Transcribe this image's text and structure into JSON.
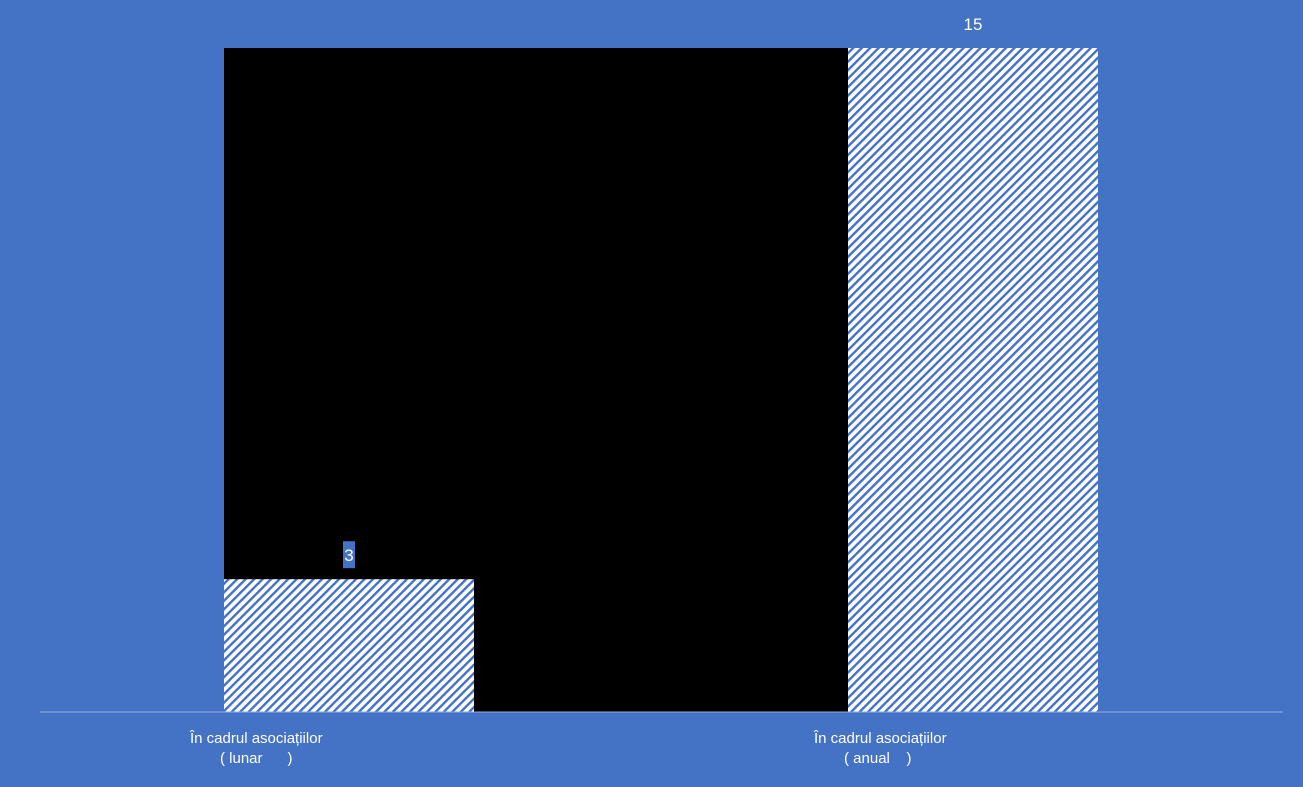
{
  "chart_data": {
    "type": "bar",
    "categories": [
      [
        "În cadrul asociațiilor",
        "( lunar      )"
      ],
      [
        "În cadrul asociațiilor",
        "( anual    )"
      ]
    ],
    "values": [
      3,
      15
    ],
    "data_labels": [
      "3",
      "15"
    ],
    "ylim": [
      0,
      15
    ],
    "grid": false,
    "legend": "none",
    "title": "",
    "xlabel": "",
    "ylabel": ""
  },
  "colors": {
    "background": "#4472c4",
    "plot_area": "#000000",
    "bar_pattern_light": "#ffffff",
    "bar_pattern_dark": "#4472c4",
    "axis_line": "#8faadc",
    "text": "#ffffff"
  }
}
